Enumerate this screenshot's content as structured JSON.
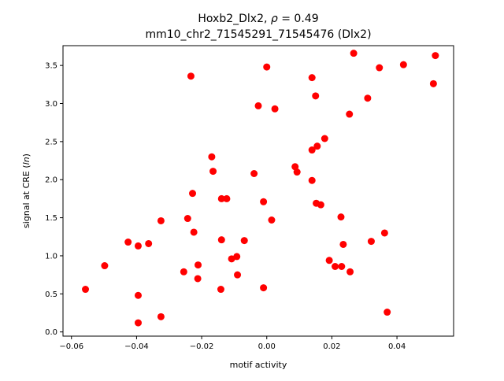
{
  "chart_data": {
    "type": "scatter",
    "title_line1_prefix": "Hoxb2_Dlx2, ",
    "title_line1_rho": "ρ",
    "title_line1_suffix": " = 0.49",
    "title_line2": "mm10_chr2_71545291_71545476 (Dlx2)",
    "xlabel": "motif activity",
    "ylabel_prefix": "signal at CRE (",
    "ylabel_ln": "ln",
    "ylabel_suffix": ")",
    "xlim": [
      -0.0626,
      0.0574
    ],
    "ylim": [
      -0.055,
      3.76
    ],
    "xticks": [
      -0.06,
      -0.04,
      -0.02,
      0.0,
      0.02,
      0.04
    ],
    "xtick_labels": [
      "−0.06",
      "−0.04",
      "−0.02",
      "0.00",
      "0.02",
      "0.04"
    ],
    "yticks": [
      0.0,
      0.5,
      1.0,
      1.5,
      2.0,
      2.5,
      3.0,
      3.5
    ],
    "ytick_labels": [
      "0.0",
      "0.5",
      "1.0",
      "1.5",
      "2.0",
      "2.5",
      "3.0",
      "3.5"
    ],
    "grid": false,
    "marker_color": "#ff0000",
    "points": [
      {
        "x": -0.0557,
        "y": 0.56
      },
      {
        "x": -0.0498,
        "y": 0.87
      },
      {
        "x": -0.0395,
        "y": 0.48
      },
      {
        "x": -0.0395,
        "y": 0.12
      },
      {
        "x": -0.0395,
        "y": 1.13
      },
      {
        "x": -0.0426,
        "y": 1.18
      },
      {
        "x": -0.0363,
        "y": 1.16
      },
      {
        "x": -0.0325,
        "y": 1.46
      },
      {
        "x": -0.0325,
        "y": 0.2
      },
      {
        "x": -0.0233,
        "y": 3.36
      },
      {
        "x": -0.0228,
        "y": 1.82
      },
      {
        "x": -0.0243,
        "y": 1.49
      },
      {
        "x": -0.0224,
        "y": 1.31
      },
      {
        "x": -0.0211,
        "y": 0.88
      },
      {
        "x": -0.0255,
        "y": 0.79
      },
      {
        "x": -0.0212,
        "y": 0.7
      },
      {
        "x": -0.0169,
        "y": 2.3
      },
      {
        "x": -0.0165,
        "y": 2.11
      },
      {
        "x": -0.0139,
        "y": 1.75
      },
      {
        "x": -0.0123,
        "y": 1.75
      },
      {
        "x": -0.0139,
        "y": 1.21
      },
      {
        "x": -0.0108,
        "y": 0.96
      },
      {
        "x": -0.0092,
        "y": 0.99
      },
      {
        "x": -0.009,
        "y": 0.75
      },
      {
        "x": -0.0141,
        "y": 0.56
      },
      {
        "x": -0.0069,
        "y": 1.2
      },
      {
        "x": -0.0039,
        "y": 2.08
      },
      {
        "x": -0.0026,
        "y": 2.97
      },
      {
        "x": 0.0,
        "y": 3.48
      },
      {
        "x": -0.001,
        "y": 1.71
      },
      {
        "x": 0.0015,
        "y": 1.47
      },
      {
        "x": -0.001,
        "y": 0.58
      },
      {
        "x": 0.0025,
        "y": 2.93
      },
      {
        "x": 0.0087,
        "y": 2.17
      },
      {
        "x": 0.0093,
        "y": 2.1
      },
      {
        "x": 0.0139,
        "y": 3.34
      },
      {
        "x": 0.015,
        "y": 3.1
      },
      {
        "x": 0.0139,
        "y": 2.39
      },
      {
        "x": 0.0155,
        "y": 2.44
      },
      {
        "x": 0.0178,
        "y": 2.54
      },
      {
        "x": 0.0139,
        "y": 1.99
      },
      {
        "x": 0.0152,
        "y": 1.69
      },
      {
        "x": 0.0166,
        "y": 1.67
      },
      {
        "x": 0.0228,
        "y": 1.51
      },
      {
        "x": 0.0235,
        "y": 1.15
      },
      {
        "x": 0.0192,
        "y": 0.94
      },
      {
        "x": 0.021,
        "y": 0.86
      },
      {
        "x": 0.023,
        "y": 0.86
      },
      {
        "x": 0.0256,
        "y": 0.79
      },
      {
        "x": 0.0254,
        "y": 2.86
      },
      {
        "x": 0.0267,
        "y": 3.66
      },
      {
        "x": 0.031,
        "y": 3.07
      },
      {
        "x": 0.0346,
        "y": 3.47
      },
      {
        "x": 0.0321,
        "y": 1.19
      },
      {
        "x": 0.0362,
        "y": 1.3
      },
      {
        "x": 0.037,
        "y": 0.26
      },
      {
        "x": 0.042,
        "y": 3.51
      },
      {
        "x": 0.0518,
        "y": 3.63
      },
      {
        "x": 0.0512,
        "y": 3.26
      }
    ]
  }
}
